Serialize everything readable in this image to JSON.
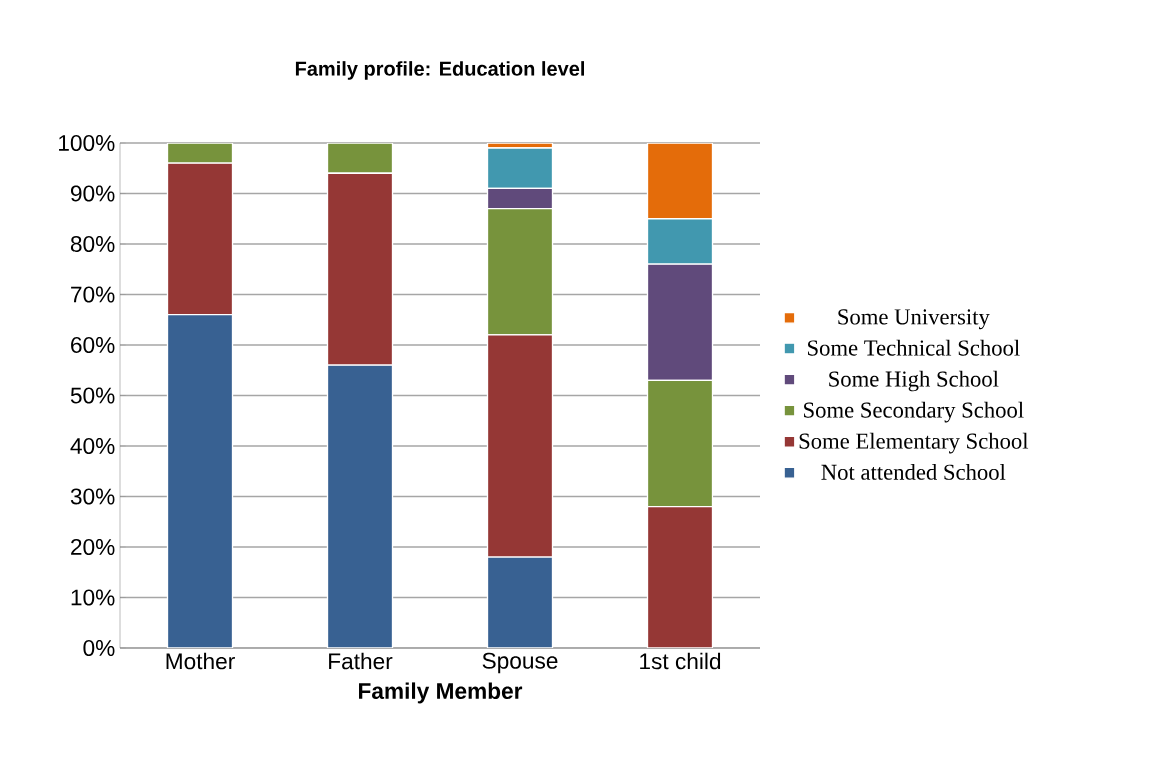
{
  "chart_data": {
    "type": "bar",
    "title": "Family profile: Education level",
    "xlabel": "Family Member",
    "categories": [
      "Mother",
      "Father",
      "Spouse",
      "1st child"
    ],
    "stacked": true,
    "series": [
      {
        "name": "Not attended School",
        "color": "#386192",
        "values": [
          66,
          56,
          18,
          0
        ]
      },
      {
        "name": "Some Elementary School",
        "color": "#953735",
        "values": [
          30,
          38,
          44,
          28
        ]
      },
      {
        "name": "Some Secondary School",
        "color": "#77933c",
        "values": [
          4,
          6,
          25,
          25
        ]
      },
      {
        "name": "Some High School",
        "color": "#604a7b",
        "values": [
          0,
          0,
          4,
          23
        ]
      },
      {
        "name": "Some Technical School",
        "color": "#4198af",
        "values": [
          0,
          0,
          8,
          9
        ]
      },
      {
        "name": "Some University",
        "color": "#e46c0a",
        "values": [
          0,
          0,
          1,
          15
        ]
      }
    ],
    "ylim": [
      0,
      100
    ],
    "yticks": [
      {
        "value": 0,
        "label": "0%"
      },
      {
        "value": 10,
        "label": "10%"
      },
      {
        "value": 20,
        "label": "20%"
      },
      {
        "value": 30,
        "label": "30%"
      },
      {
        "value": 40,
        "label": "40%"
      },
      {
        "value": 50,
        "label": "50%"
      },
      {
        "value": 60,
        "label": "60%"
      },
      {
        "value": 70,
        "label": "70%"
      },
      {
        "value": 80,
        "label": "80%"
      },
      {
        "value": 90,
        "label": "90%"
      },
      {
        "value": 100,
        "label": "100%"
      }
    ],
    "grid": "y",
    "legend": "right"
  }
}
